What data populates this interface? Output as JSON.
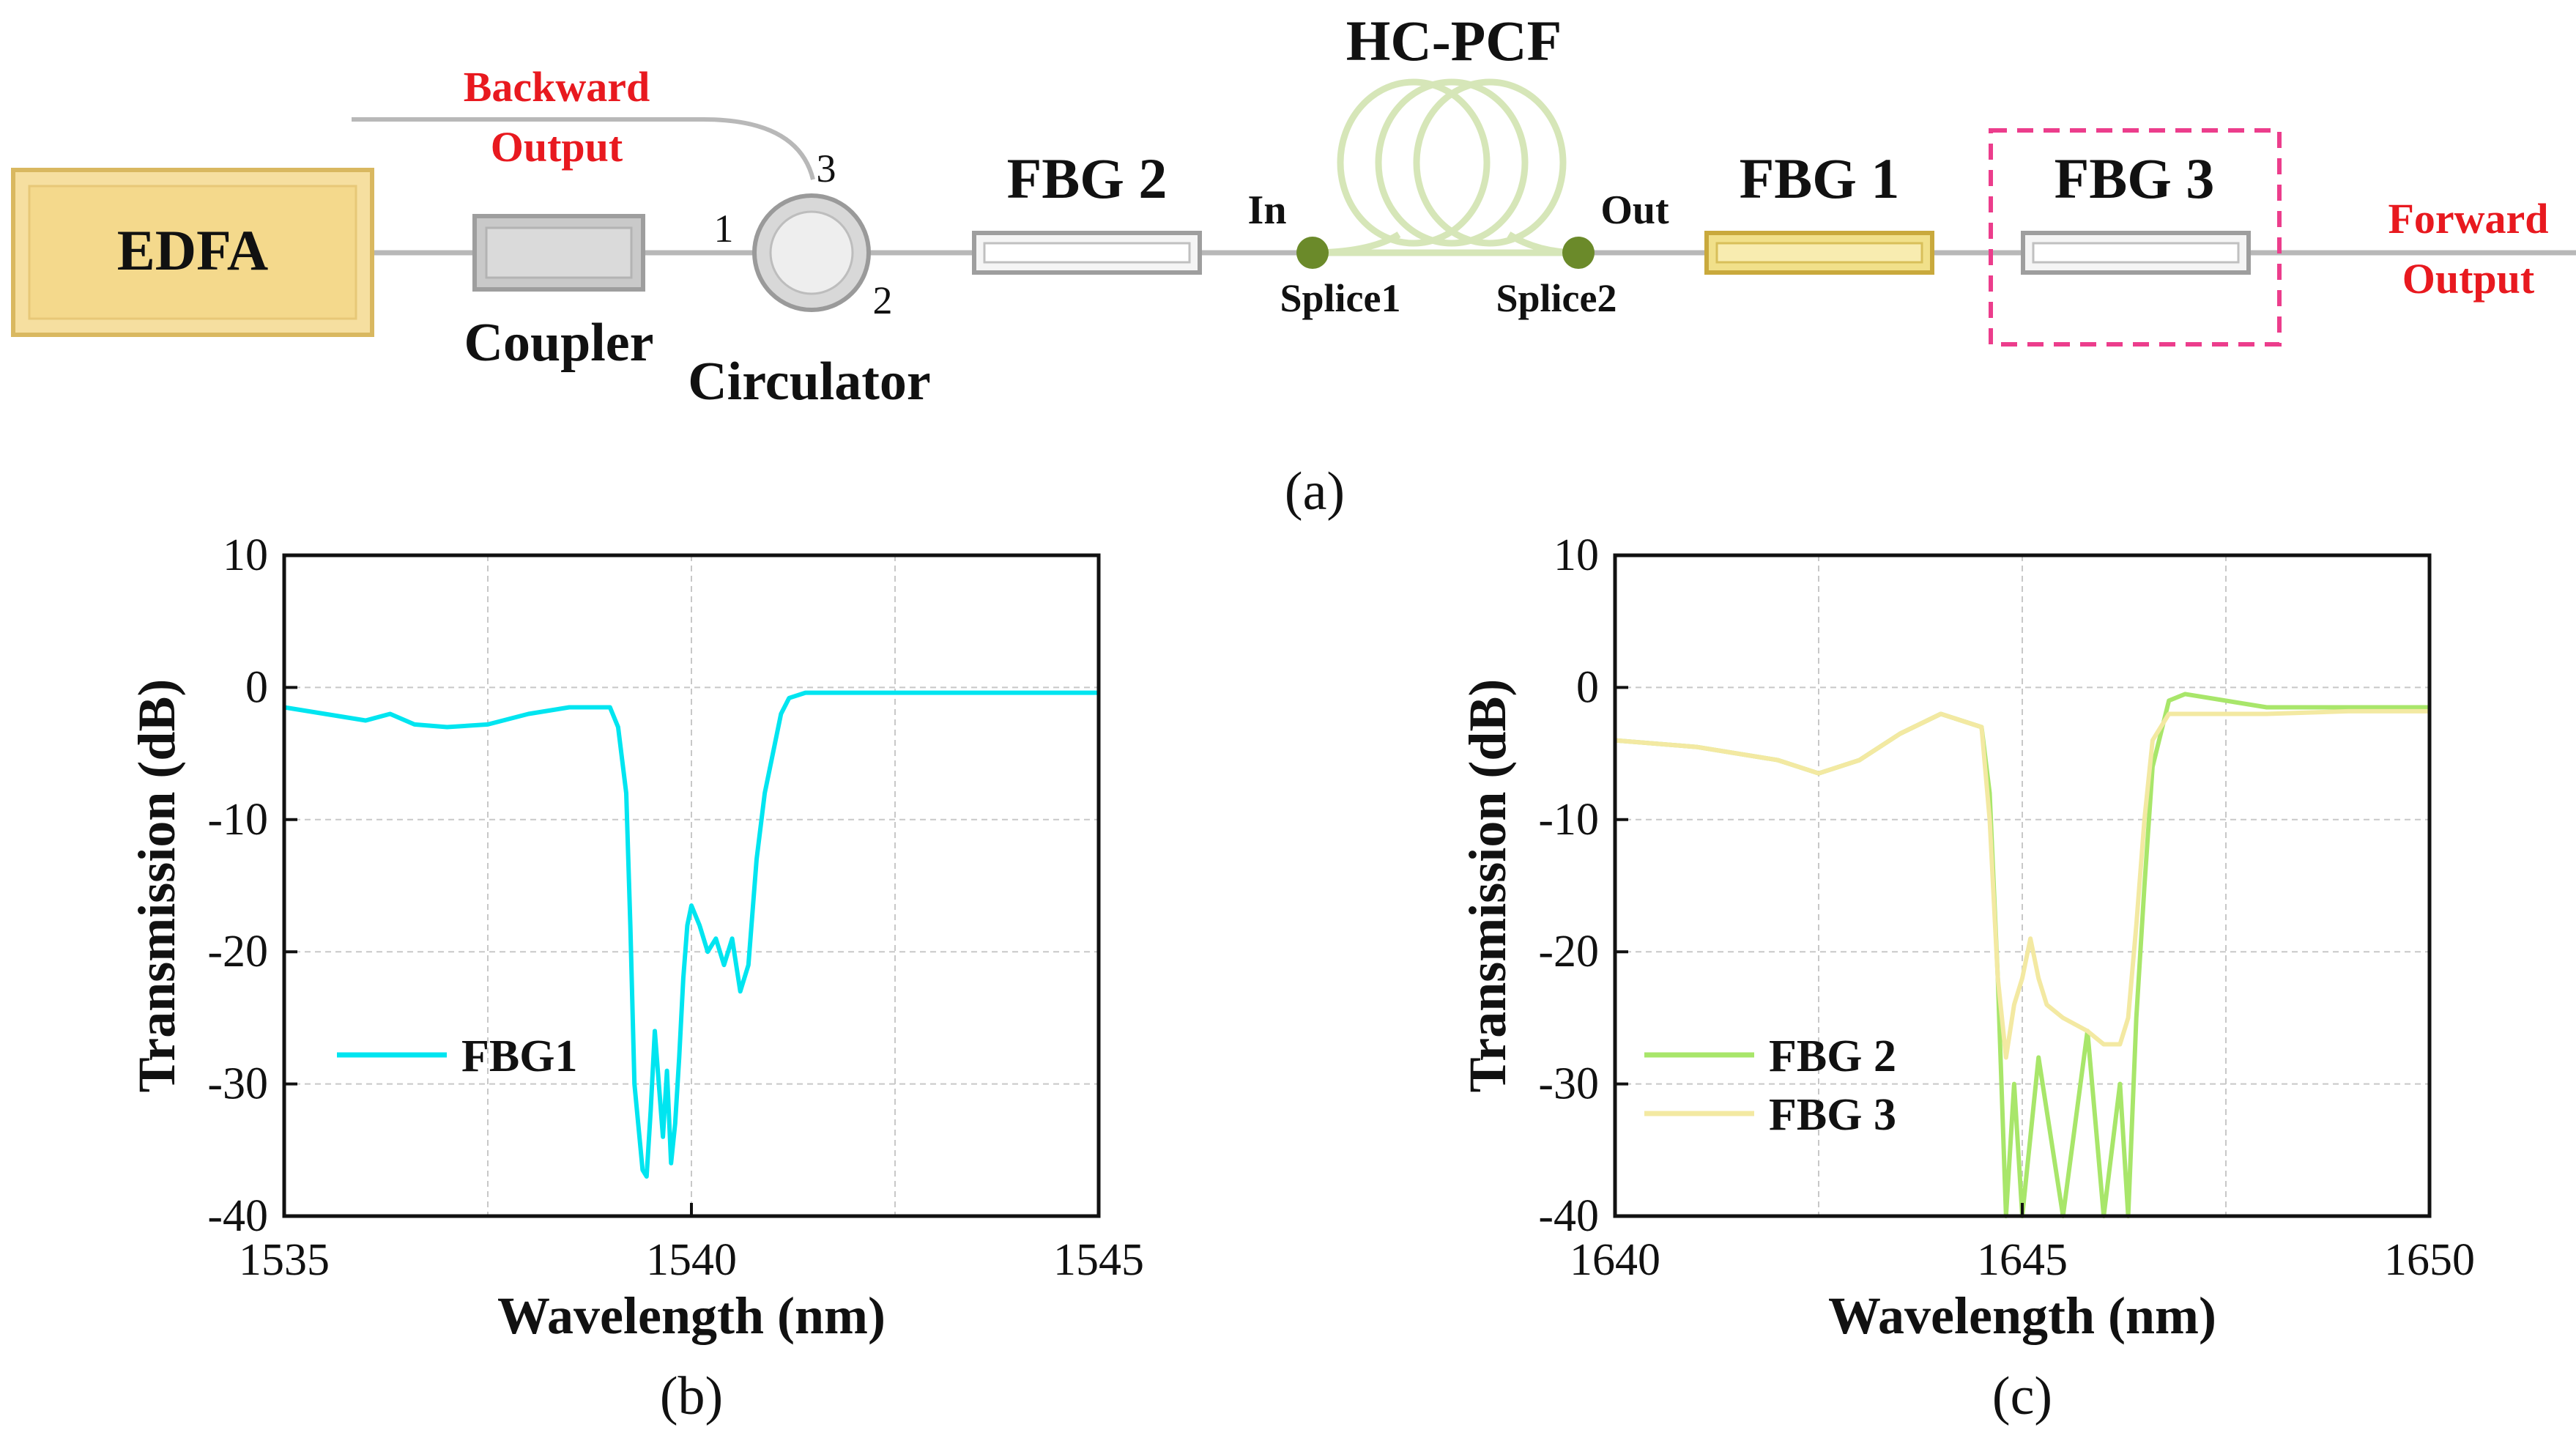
{
  "colors": {
    "fiber": "#b8b8b8",
    "edfa_fill": "#f6dfa0",
    "edfa_edge": "#d9b860",
    "red_text": "#e8191f",
    "pink_box": "#ec3d8c",
    "splice": "#6b8a2a",
    "hcpcf": "#d6e6b8",
    "fbg1_fill": "#f1e08a",
    "fbg1_edge": "#c9a93c",
    "cyan": "#00e5f0",
    "green": "#a8e66a",
    "yellow": "#f3e9a2",
    "grid": "#c8c8c8"
  },
  "setup": {
    "edfa": "EDFA",
    "coupler": "Coupler",
    "circulator": "Circulator",
    "port1": "1",
    "port2": "2",
    "port3": "3",
    "backward_line1": "Backward",
    "backward_line2": "Output",
    "fbg2": "FBG 2",
    "in": "In",
    "out": "Out",
    "hcpcf": "HC-PCF",
    "splice1": "Splice1",
    "splice2": "Splice2",
    "fbg1": "FBG 1",
    "fbg3": "FBG 3",
    "forward_line1": "Forward",
    "forward_line2": "Output",
    "caption": "(a)"
  },
  "chart_data": [
    {
      "type": "line",
      "caption": "(b)",
      "xlabel": "Wavelength (nm)",
      "ylabel": "Transmission (dB)",
      "xlim": [
        1535,
        1545
      ],
      "ylim": [
        -40,
        10
      ],
      "xticks": [
        1535,
        1540,
        1545
      ],
      "yticks": [
        10,
        0,
        -10,
        -20,
        -30,
        -40
      ],
      "grid": true,
      "legend": "middle-left",
      "series": [
        {
          "name": "FBG1",
          "color": "#00e5f0",
          "x": [
            1535.0,
            1535.5,
            1536.0,
            1536.3,
            1536.6,
            1537.0,
            1537.5,
            1538.0,
            1538.5,
            1539.0,
            1539.1,
            1539.2,
            1539.25,
            1539.3,
            1539.4,
            1539.45,
            1539.5,
            1539.55,
            1539.6,
            1539.65,
            1539.7,
            1539.75,
            1539.8,
            1539.85,
            1539.9,
            1539.95,
            1540.0,
            1540.1,
            1540.2,
            1540.3,
            1540.4,
            1540.5,
            1540.6,
            1540.7,
            1540.8,
            1540.9,
            1541.0,
            1541.1,
            1541.2,
            1541.4,
            1542.0,
            1543.0,
            1544.0,
            1545.0
          ],
          "values": [
            -1.5,
            -2.0,
            -2.5,
            -2.0,
            -2.8,
            -3.0,
            -2.8,
            -2.0,
            -1.5,
            -1.5,
            -3.0,
            -8.0,
            -18.0,
            -30.0,
            -36.5,
            -37.0,
            -32.0,
            -26.0,
            -30.0,
            -34.0,
            -29.0,
            -36.0,
            -33.0,
            -28.0,
            -22.0,
            -18.0,
            -16.5,
            -18.0,
            -20.0,
            -19.0,
            -21.0,
            -19.0,
            -23.0,
            -21.0,
            -13.0,
            -8.0,
            -5.0,
            -2.0,
            -0.8,
            -0.4,
            -0.4,
            -0.4,
            -0.4,
            -0.4
          ]
        }
      ]
    },
    {
      "type": "line",
      "caption": "(c)",
      "xlabel": "Wavelength (nm)",
      "ylabel": "Transmission (dB)",
      "xlim": [
        1640,
        1650
      ],
      "ylim": [
        -40,
        10
      ],
      "xticks": [
        1640,
        1645,
        1650
      ],
      "yticks": [
        10,
        0,
        -10,
        -20,
        -30,
        -40
      ],
      "grid": true,
      "legend": "lower-left",
      "series": [
        {
          "name": "FBG 2",
          "color": "#a8e66a",
          "x": [
            1640.0,
            1641.0,
            1642.0,
            1642.5,
            1643.0,
            1643.5,
            1644.0,
            1644.5,
            1644.6,
            1644.7,
            1644.8,
            1644.9,
            1645.0,
            1645.2,
            1645.5,
            1645.8,
            1646.0,
            1646.2,
            1646.3,
            1646.4,
            1646.5,
            1646.6,
            1646.8,
            1647.0,
            1648.0,
            1649.0,
            1650.0
          ],
          "values": [
            -4.0,
            -4.5,
            -5.5,
            -6.5,
            -5.5,
            -3.5,
            -2.0,
            -3.0,
            -8.0,
            -22.0,
            -40.0,
            -30.0,
            -40.0,
            -28.0,
            -40.0,
            -26.0,
            -40.0,
            -30.0,
            -40.0,
            -25.0,
            -15.0,
            -6.0,
            -1.0,
            -0.5,
            -1.5,
            -1.5,
            -1.5
          ]
        },
        {
          "name": "FBG 3",
          "color": "#f3e9a2",
          "x": [
            1640.0,
            1641.0,
            1642.0,
            1642.5,
            1643.0,
            1643.5,
            1644.0,
            1644.5,
            1644.6,
            1644.7,
            1644.8,
            1644.9,
            1645.0,
            1645.1,
            1645.2,
            1645.3,
            1645.5,
            1645.8,
            1646.0,
            1646.2,
            1646.3,
            1646.4,
            1646.5,
            1646.6,
            1646.8,
            1647.0,
            1648.0,
            1649.0,
            1650.0
          ],
          "values": [
            -4.0,
            -4.5,
            -5.5,
            -6.5,
            -5.5,
            -3.5,
            -2.0,
            -3.0,
            -10.0,
            -22.0,
            -28.0,
            -24.0,
            -22.0,
            -19.0,
            -22.0,
            -24.0,
            -25.0,
            -26.0,
            -27.0,
            -27.0,
            -25.0,
            -18.0,
            -10.0,
            -4.0,
            -2.0,
            -2.0,
            -2.0,
            -1.8,
            -1.8
          ]
        }
      ]
    }
  ]
}
